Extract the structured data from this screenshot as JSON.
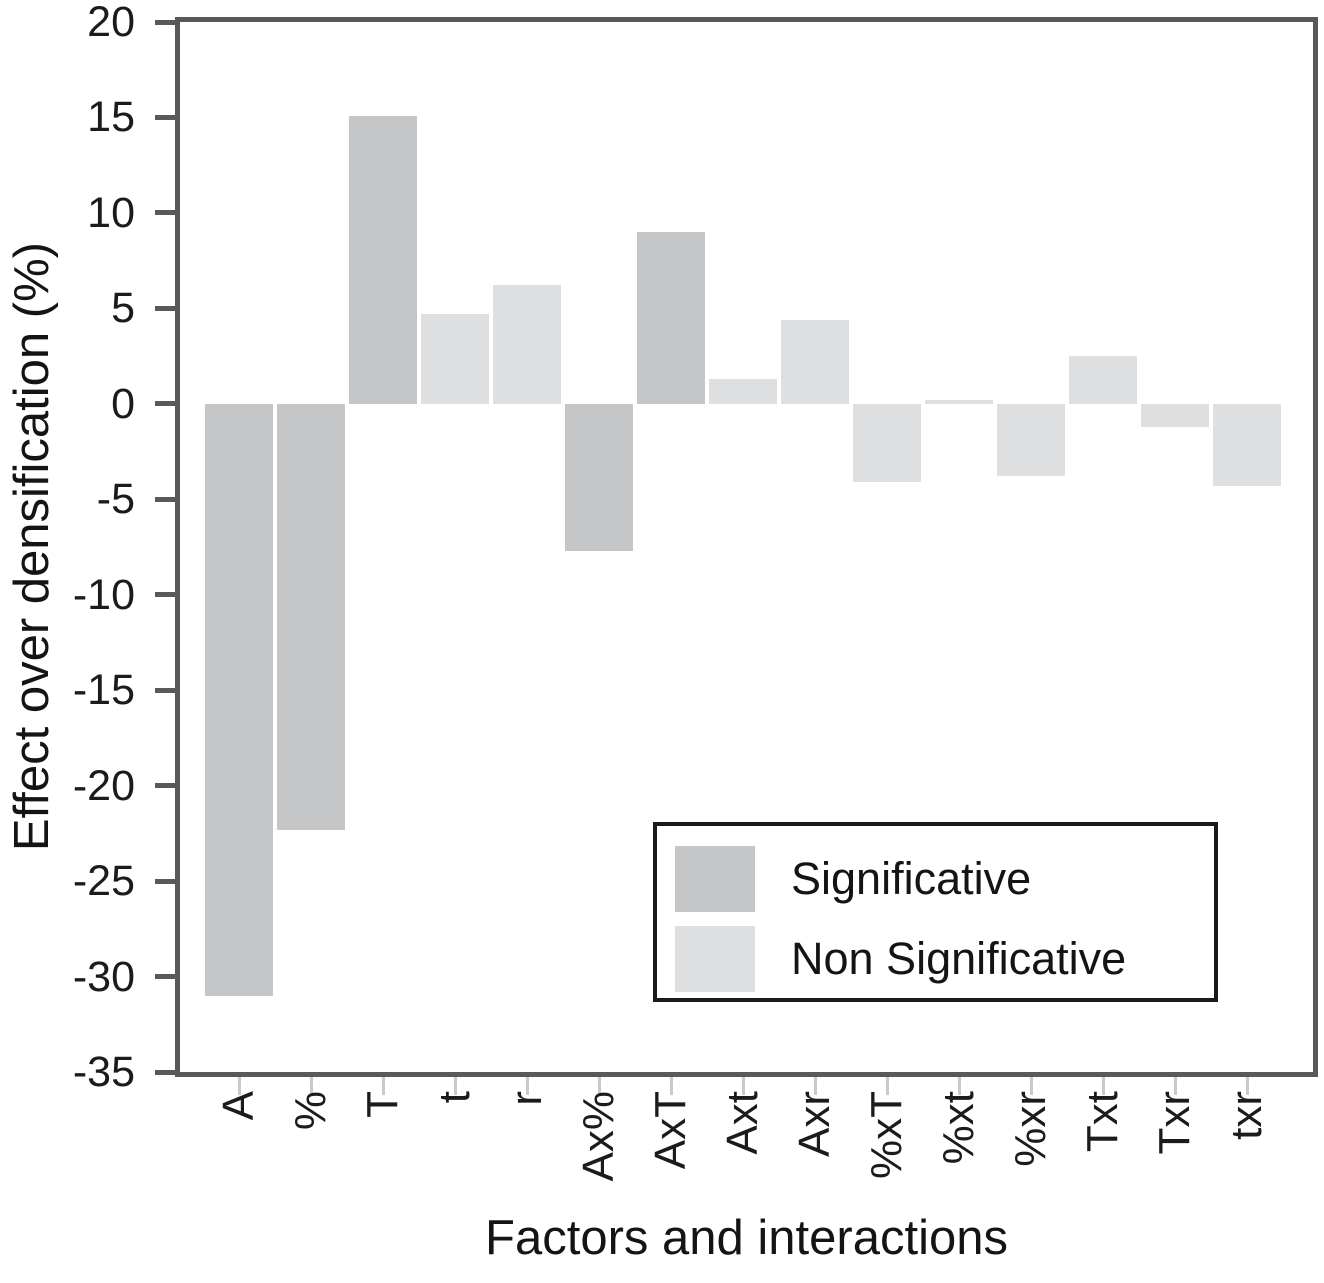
{
  "chart_data": {
    "type": "bar",
    "title": "",
    "xlabel": "Factors and interactions",
    "ylabel": "Effect over densification (%)",
    "ylim": [
      -35,
      20
    ],
    "ytick_step": 5,
    "yticks": [
      20,
      15,
      10,
      5,
      0,
      -5,
      -10,
      -15,
      -20,
      -25,
      -30,
      -35
    ],
    "categories": [
      "A",
      "%",
      "T",
      "t",
      "r",
      "Ax%",
      "AxT",
      "Axt",
      "Axr",
      "%xT",
      "%xt",
      "%xr",
      "Txt",
      "Txr",
      "txr"
    ],
    "values": [
      -31.0,
      -22.3,
      15.1,
      4.7,
      6.2,
      -7.7,
      9.0,
      1.3,
      4.4,
      -4.1,
      0.2,
      -3.8,
      2.5,
      -1.2,
      -4.3
    ],
    "significant": [
      true,
      true,
      true,
      false,
      false,
      true,
      true,
      false,
      false,
      false,
      false,
      false,
      false,
      false,
      false
    ],
    "grid": false,
    "legend": {
      "position": "lower right",
      "items": [
        {
          "label": "Significative",
          "color": "#c4c6c8"
        },
        {
          "label": "Non Significative",
          "color": "#dddfe0"
        }
      ]
    },
    "colors": {
      "significative": "#c4c6c8",
      "non_significative": "#dddfe0",
      "axis": "#58595b",
      "x_tick": "#c9cacc",
      "text": "#1b1b1d"
    }
  }
}
